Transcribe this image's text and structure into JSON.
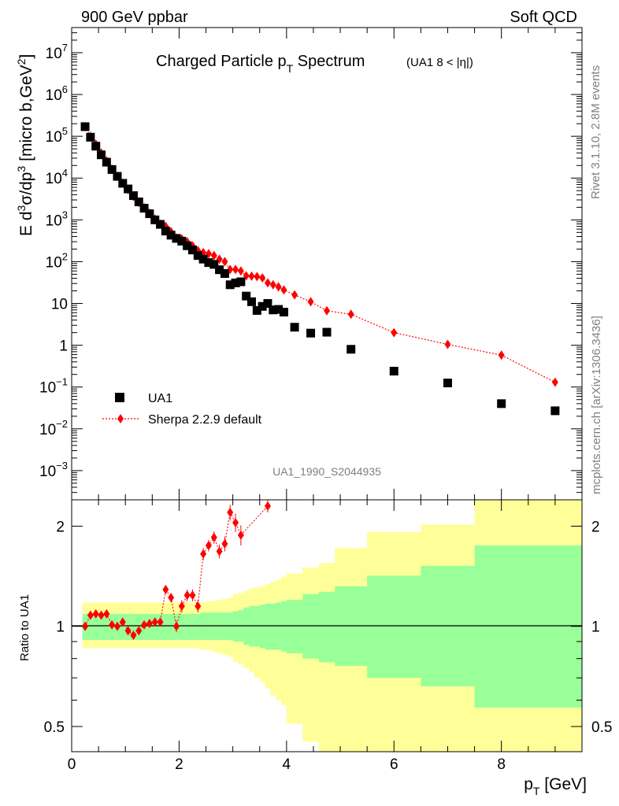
{
  "header": {
    "left": "900 GeV ppbar",
    "right": "Soft QCD"
  },
  "side": {
    "rivet": "Rivet 3.1.10,  2.8M events",
    "mcplots": "mcplots.cern.ch [arXiv:1306.3436]"
  },
  "colors": {
    "data": "#000000",
    "mc": "#ff0000",
    "band_inner": "#99ff99",
    "band_outer": "#ffff99"
  },
  "chart_data": [
    {
      "type": "scatter",
      "title": "Charged Particle pT Spectrum (UA1  8 < |η|)",
      "title_main": "Charged Particle p",
      "title_sub": "T",
      "title_tail": " Spectrum",
      "title_small": "(UA1   8 < |η|)",
      "ylabel": "E d³σ/dp³ [micro b,GeV²]",
      "ylabel_parts": [
        "E d",
        "3",
        "σ/dp",
        "3",
        " [micro b,GeV",
        "2",
        "]"
      ],
      "xlabel": "pT [GeV]",
      "yscale": "log",
      "xlim": [
        0,
        9.5
      ],
      "ylim": [
        0.0002,
        40000000
      ],
      "y_ticks": [
        {
          "v": 10000000,
          "base": "10",
          "exp": "7"
        },
        {
          "v": 1000000,
          "base": "10",
          "exp": "6"
        },
        {
          "v": 100000,
          "base": "10",
          "exp": "5"
        },
        {
          "v": 10000,
          "base": "10",
          "exp": "4"
        },
        {
          "v": 1000,
          "base": "10",
          "exp": "3"
        },
        {
          "v": 100,
          "base": "10",
          "exp": "2"
        },
        {
          "v": 10,
          "base": "10",
          "exp": ""
        },
        {
          "v": 1,
          "base": "1",
          "exp": ""
        },
        {
          "v": 0.1,
          "base": "10",
          "exp": "−1"
        },
        {
          "v": 0.01,
          "base": "10",
          "exp": "−2"
        },
        {
          "v": 0.001,
          "base": "10",
          "exp": "−3"
        }
      ],
      "legend_position": "lower-left",
      "watermark": "UA1_1990_S2044935",
      "series": [
        {
          "name": "UA1",
          "marker": "square",
          "x": [
            0.25,
            0.35,
            0.45,
            0.55,
            0.65,
            0.75,
            0.85,
            0.95,
            1.05,
            1.15,
            1.25,
            1.35,
            1.45,
            1.55,
            1.65,
            1.75,
            1.85,
            1.95,
            2.05,
            2.15,
            2.25,
            2.35,
            2.45,
            2.55,
            2.65,
            2.75,
            2.85,
            2.95,
            3.05,
            3.15,
            3.25,
            3.35,
            3.45,
            3.55,
            3.65,
            3.75,
            3.85,
            3.95,
            4.15,
            4.45,
            4.75,
            5.2,
            6.0,
            7.0,
            8.0,
            9.0
          ],
          "y": [
            170000,
            95000,
            58000,
            36000,
            24000,
            16000,
            11000,
            7500,
            5500,
            3800,
            2700,
            1900,
            1400,
            1000,
            780,
            540,
            430,
            360,
            310,
            240,
            190,
            140,
            115,
            95,
            86,
            64,
            52,
            28,
            31,
            33,
            15,
            11,
            6.8,
            8.5,
            10,
            7,
            7.2,
            6.2,
            2.7,
            1.95,
            2.05,
            0.8,
            0.24,
            0.125,
            0.04,
            0.027
          ]
        },
        {
          "name": "Sherpa 2.2.9 default",
          "marker": "diamond",
          "line": "dotted",
          "x": [
            0.25,
            0.35,
            0.45,
            0.55,
            0.65,
            0.75,
            0.85,
            0.95,
            1.05,
            1.15,
            1.25,
            1.35,
            1.45,
            1.55,
            1.65,
            1.75,
            1.85,
            1.95,
            2.05,
            2.15,
            2.25,
            2.35,
            2.45,
            2.55,
            2.65,
            2.75,
            2.85,
            2.95,
            3.05,
            3.15,
            3.25,
            3.35,
            3.45,
            3.55,
            3.65,
            3.75,
            3.85,
            3.95,
            4.15,
            4.45,
            4.75,
            5.2,
            6.0,
            7.0,
            8.0,
            9.0
          ],
          "y": [
            170000,
            100000,
            65000,
            40000,
            26000,
            16500,
            11000,
            7500,
            5300,
            3600,
            2600,
            1950,
            1450,
            1050,
            800,
            700,
            520,
            370,
            350,
            300,
            240,
            185,
            165,
            155,
            140,
            115,
            100,
            65,
            65,
            60,
            46,
            45,
            44,
            41,
            31,
            28,
            25,
            21,
            16,
            11,
            6.7,
            5.5,
            2.0,
            1.05,
            0.58,
            0.13
          ]
        }
      ]
    },
    {
      "type": "line",
      "ylabel": "Ratio to UA1",
      "yscale": "log",
      "xlim": [
        0,
        9.5
      ],
      "ylim": [
        0.42,
        2.4
      ],
      "x_ticks": [
        "0",
        "2",
        "4",
        "6",
        "8"
      ],
      "y_ticks": [
        "0.5",
        "1",
        "2"
      ],
      "reference": 1,
      "band_edges": [
        0.2,
        0.3,
        0.4,
        0.5,
        0.6,
        0.7,
        0.8,
        0.9,
        1.0,
        1.1,
        1.2,
        1.3,
        1.4,
        1.5,
        1.6,
        1.7,
        1.8,
        1.9,
        2.0,
        2.1,
        2.2,
        2.3,
        2.4,
        2.5,
        2.6,
        2.7,
        2.8,
        2.9,
        3.0,
        3.1,
        3.2,
        3.3,
        3.4,
        3.5,
        3.6,
        3.7,
        3.8,
        3.9,
        4.0,
        4.3,
        4.6,
        4.9,
        5.5,
        6.5,
        7.5,
        9.5
      ],
      "band_inner_hi": [
        1.09,
        1.09,
        1.09,
        1.09,
        1.09,
        1.09,
        1.09,
        1.09,
        1.09,
        1.09,
        1.09,
        1.09,
        1.09,
        1.09,
        1.09,
        1.09,
        1.09,
        1.09,
        1.09,
        1.09,
        1.09,
        1.09,
        1.1,
        1.1,
        1.1,
        1.1,
        1.1,
        1.1,
        1.11,
        1.12,
        1.14,
        1.15,
        1.15,
        1.16,
        1.17,
        1.17,
        1.18,
        1.19,
        1.2,
        1.25,
        1.27,
        1.32,
        1.42,
        1.52,
        1.75
      ],
      "band_inner_lo": [
        0.91,
        0.91,
        0.91,
        0.91,
        0.91,
        0.91,
        0.91,
        0.91,
        0.91,
        0.91,
        0.91,
        0.91,
        0.91,
        0.91,
        0.91,
        0.91,
        0.91,
        0.91,
        0.91,
        0.91,
        0.91,
        0.91,
        0.91,
        0.91,
        0.91,
        0.91,
        0.91,
        0.91,
        0.9,
        0.9,
        0.88,
        0.87,
        0.87,
        0.86,
        0.85,
        0.85,
        0.85,
        0.84,
        0.83,
        0.8,
        0.78,
        0.76,
        0.7,
        0.66,
        0.57
      ],
      "band_outer_hi": [
        1.18,
        1.18,
        1.18,
        1.18,
        1.18,
        1.18,
        1.18,
        1.18,
        1.18,
        1.18,
        1.18,
        1.18,
        1.18,
        1.18,
        1.18,
        1.18,
        1.18,
        1.18,
        1.18,
        1.18,
        1.18,
        1.18,
        1.18,
        1.19,
        1.19,
        1.2,
        1.21,
        1.22,
        1.25,
        1.26,
        1.28,
        1.3,
        1.31,
        1.32,
        1.34,
        1.36,
        1.38,
        1.41,
        1.44,
        1.5,
        1.55,
        1.72,
        1.92,
        2.02,
        2.4
      ],
      "band_outer_lo": [
        0.86,
        0.86,
        0.86,
        0.86,
        0.86,
        0.86,
        0.86,
        0.86,
        0.86,
        0.86,
        0.86,
        0.86,
        0.86,
        0.86,
        0.86,
        0.86,
        0.86,
        0.86,
        0.86,
        0.86,
        0.86,
        0.86,
        0.85,
        0.85,
        0.84,
        0.83,
        0.82,
        0.81,
        0.78,
        0.77,
        0.75,
        0.73,
        0.7,
        0.68,
        0.65,
        0.62,
        0.6,
        0.58,
        0.51,
        0.45,
        0.42,
        0.42,
        0.42,
        0.42,
        0.42
      ],
      "ratio": {
        "x": [
          0.25,
          0.35,
          0.45,
          0.55,
          0.65,
          0.75,
          0.85,
          0.95,
          1.05,
          1.15,
          1.25,
          1.35,
          1.45,
          1.55,
          1.65,
          1.75,
          1.85,
          1.95,
          2.05,
          2.15,
          2.25,
          2.35,
          2.45,
          2.55,
          2.65,
          2.75,
          2.85,
          2.95,
          3.05,
          3.15,
          3.65
        ],
        "y": [
          1.0,
          1.08,
          1.09,
          1.08,
          1.09,
          1.01,
          1.0,
          1.03,
          0.97,
          0.94,
          0.97,
          1.01,
          1.02,
          1.03,
          1.03,
          1.29,
          1.22,
          1.0,
          1.15,
          1.24,
          1.24,
          1.15,
          1.65,
          1.75,
          1.85,
          1.68,
          1.77,
          2.2,
          2.05,
          1.88,
          2.3
        ],
        "err": [
          0.02,
          0.02,
          0.02,
          0.02,
          0.02,
          0.02,
          0.02,
          0.02,
          0.02,
          0.02,
          0.02,
          0.02,
          0.02,
          0.02,
          0.02,
          0.04,
          0.04,
          0.04,
          0.05,
          0.05,
          0.05,
          0.05,
          0.07,
          0.07,
          0.08,
          0.08,
          0.09,
          0.12,
          0.13,
          0.13,
          0.1
        ]
      }
    }
  ]
}
